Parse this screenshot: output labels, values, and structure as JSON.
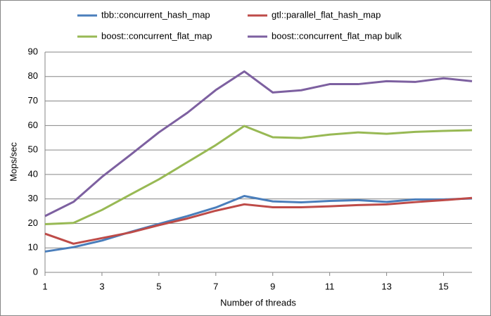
{
  "chart_data": {
    "type": "line",
    "x_label": "Number of threads",
    "y_label": "Mops/sec",
    "x": [
      1,
      2,
      3,
      4,
      5,
      6,
      7,
      8,
      9,
      10,
      11,
      12,
      13,
      14,
      15,
      16
    ],
    "xlim": [
      1,
      16
    ],
    "xticks": [
      1,
      3,
      5,
      7,
      9,
      11,
      13,
      15
    ],
    "ylim": [
      0,
      90
    ],
    "yticks": [
      0,
      10,
      20,
      30,
      40,
      50,
      60,
      70,
      80,
      90
    ],
    "grid": true,
    "legend": "top",
    "series": [
      {
        "name": "tbb::concurrent_hash_map",
        "color": "#4a7ebb",
        "values": [
          8.5,
          10.3,
          13,
          16.5,
          19.8,
          23,
          26.5,
          31.2,
          29,
          28.6,
          29.2,
          29.5,
          28.8,
          29.8,
          29.8,
          30.2
        ]
      },
      {
        "name": "gtl::parallel_flat_hash_map",
        "color": "#be4b48",
        "values": [
          15.8,
          11.7,
          14,
          16.3,
          19.3,
          22,
          25.2,
          27.8,
          26.6,
          26.6,
          27,
          27.5,
          27.8,
          28.7,
          29.5,
          30.4
        ]
      },
      {
        "name": "boost::concurrent_flat_map",
        "color": "#98b954",
        "values": [
          19.7,
          20.2,
          25.5,
          31.8,
          38,
          45,
          52,
          59.8,
          55.2,
          54.9,
          56.3,
          57.2,
          56.6,
          57.4,
          57.8,
          58.1
        ]
      },
      {
        "name": "boost::concurrent_flat_map bulk",
        "color": "#7d60a0",
        "values": [
          23,
          28.8,
          39,
          48,
          57.2,
          65.2,
          74.5,
          82.1,
          73.5,
          74.4,
          76.9,
          76.9,
          78.1,
          77.8,
          79.3,
          78.1
        ]
      }
    ]
  }
}
